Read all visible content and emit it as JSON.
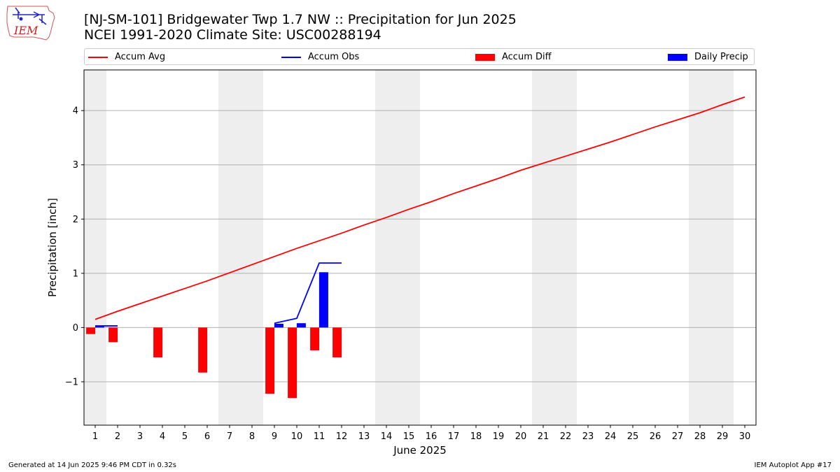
{
  "header": {
    "title_line1": "[NJ-SM-101] Bridgewater Twp 1.7 NW :: Precipitation for Jun 2025",
    "title_line2": "NCEI 1991-2020 Climate Site: USC00288194",
    "logo_text": "IEM"
  },
  "footer": {
    "generated": "Generated at 14 Jun 2025 9:46 PM CDT in 0.32s",
    "app": "IEM Autoplot App #17"
  },
  "chart_data": {
    "type": "bar",
    "xlabel": "June 2025",
    "ylabel": "Precipitation [inch]",
    "xlim": [
      0.5,
      30.5
    ],
    "ylim": [
      -1.8,
      4.75
    ],
    "yticks": [
      -1,
      0,
      1,
      2,
      3,
      4
    ],
    "ytick_labels": [
      "−1",
      "0",
      "1",
      "2",
      "3",
      "4"
    ],
    "xticks": [
      1,
      2,
      3,
      4,
      5,
      6,
      7,
      8,
      9,
      10,
      11,
      12,
      13,
      14,
      15,
      16,
      17,
      18,
      19,
      20,
      21,
      22,
      23,
      24,
      25,
      26,
      27,
      28,
      29,
      30
    ],
    "grid": "y",
    "legend_position": "top",
    "weekend_shading": [
      [
        0.5,
        1.5
      ],
      [
        6.5,
        8.5
      ],
      [
        13.5,
        15.5
      ],
      [
        20.5,
        22.5
      ],
      [
        27.5,
        29.5
      ]
    ],
    "series": [
      {
        "name": "Accum Avg",
        "kind": "line",
        "color": "#ff0000",
        "x": [
          1,
          2,
          3,
          4,
          5,
          6,
          7,
          8,
          9,
          10,
          11,
          12,
          13,
          14,
          15,
          16,
          17,
          18,
          19,
          20,
          21,
          22,
          23,
          24,
          25,
          26,
          27,
          28,
          29,
          30
        ],
        "values": [
          0.15,
          0.3,
          0.44,
          0.58,
          0.72,
          0.86,
          1.01,
          1.16,
          1.31,
          1.46,
          1.6,
          1.74,
          1.89,
          2.03,
          2.18,
          2.32,
          2.47,
          2.61,
          2.75,
          2.9,
          3.03,
          3.16,
          3.29,
          3.42,
          3.56,
          3.7,
          3.83,
          3.96,
          4.11,
          4.25
        ]
      },
      {
        "name": "Accum Obs",
        "kind": "line",
        "color": "#0000ff",
        "x": [
          1,
          2,
          9,
          10,
          11,
          12
        ],
        "values": [
          0.03,
          0.03,
          0.08,
          0.17,
          1.19,
          1.19
        ],
        "gap_after_index": 1
      },
      {
        "name": "Accum Diff",
        "kind": "bar",
        "color": "#ff0000",
        "offset": -0.2,
        "x": [
          1,
          2,
          4,
          6,
          9,
          10,
          11,
          12
        ],
        "values": [
          -0.12,
          -0.27,
          -0.55,
          -0.83,
          -1.22,
          -1.3,
          -0.42,
          -0.55
        ]
      },
      {
        "name": "Daily Precip",
        "kind": "bar",
        "color": "#0000ff",
        "offset": 0.2,
        "x": [
          1,
          9,
          10,
          11
        ],
        "values": [
          0.02,
          0.07,
          0.08,
          1.02
        ]
      }
    ]
  }
}
